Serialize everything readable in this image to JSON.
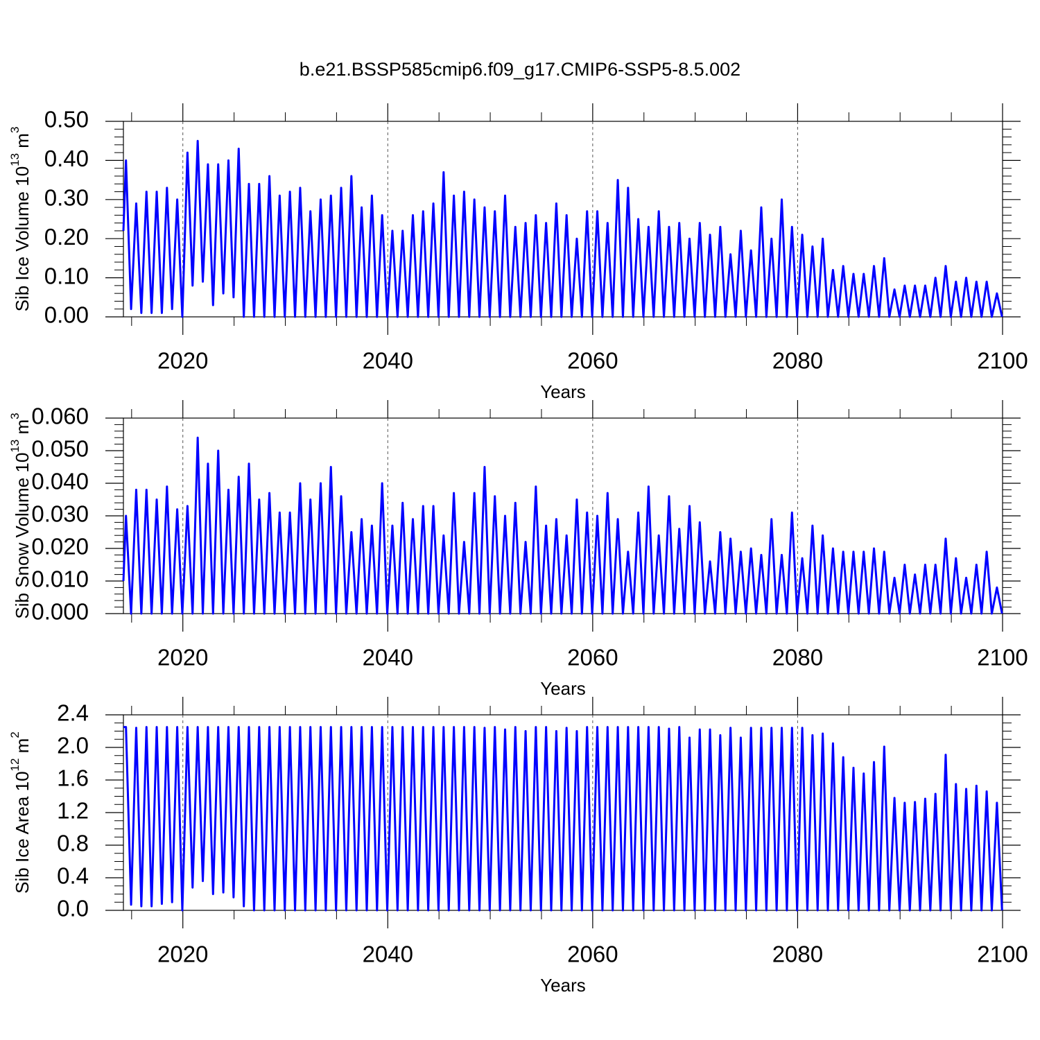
{
  "chart_data": [
    {
      "type": "line",
      "title": "b.e21.BSSP585cmip6.f09_g17.CMIP6-SSP5-8.5.002",
      "ylabel": [
        "Sib Ice Volume 10",
        "13",
        " m",
        "3"
      ],
      "xlabel": "Years",
      "color": "#0000ff",
      "grid": true,
      "xlim": [
        2014.2,
        2100
      ],
      "xticks": [
        2020,
        2040,
        2060,
        2080,
        2100
      ],
      "xminorticks": [
        2015,
        2025,
        2030,
        2035,
        2045,
        2050,
        2055,
        2065,
        2070,
        2075,
        2085,
        2090,
        2095
      ],
      "ylim": [
        0,
        0.5
      ],
      "yticks": [
        {
          "value": 0,
          "label": "0.00"
        },
        {
          "value": 0.1,
          "label": "0.10"
        },
        {
          "value": 0.2,
          "label": "0.20"
        },
        {
          "value": 0.3,
          "label": "0.30"
        },
        {
          "value": 0.4,
          "label": "0.40"
        },
        {
          "value": 0.5,
          "label": "0.50"
        }
      ],
      "yminorticks": [
        0.02,
        0.04,
        0.06,
        0.08,
        0.12,
        0.14,
        0.16,
        0.18,
        0.22,
        0.24,
        0.26,
        0.28,
        0.32,
        0.34,
        0.36,
        0.38,
        0.42,
        0.44,
        0.46,
        0.48
      ],
      "x": [
        2014.2,
        2014.45,
        2014.95,
        2015.45,
        2015.95,
        2016.45,
        2016.95,
        2017.45,
        2017.95,
        2018.45,
        2018.95,
        2019.45,
        2019.95,
        2020.45,
        2020.95,
        2021.45,
        2021.95,
        2022.45,
        2022.95,
        2023.45,
        2023.95,
        2024.45,
        2024.95,
        2025.45,
        2025.95,
        2026.45,
        2026.95,
        2027.45,
        2027.95,
        2028.45,
        2028.95,
        2029.45,
        2029.95,
        2030.45,
        2030.95,
        2031.45,
        2031.95,
        2032.45,
        2032.95,
        2033.45,
        2033.95,
        2034.45,
        2034.95,
        2035.45,
        2035.95,
        2036.45,
        2036.95,
        2037.45,
        2037.95,
        2038.45,
        2038.95,
        2039.45,
        2039.95,
        2040.45,
        2040.95,
        2041.45,
        2041.95,
        2042.45,
        2042.95,
        2043.45,
        2043.95,
        2044.45,
        2044.95,
        2045.45,
        2045.95,
        2046.45,
        2046.95,
        2047.45,
        2047.95,
        2048.45,
        2048.95,
        2049.45,
        2049.95,
        2050.45,
        2050.95,
        2051.45,
        2051.95,
        2052.45,
        2052.95,
        2053.45,
        2053.95,
        2054.45,
        2054.95,
        2055.45,
        2055.95,
        2056.45,
        2056.95,
        2057.45,
        2057.95,
        2058.45,
        2058.95,
        2059.45,
        2059.95,
        2060.45,
        2060.95,
        2061.45,
        2061.95,
        2062.45,
        2062.95,
        2063.45,
        2063.95,
        2064.45,
        2064.95,
        2065.45,
        2065.95,
        2066.45,
        2066.95,
        2067.45,
        2067.95,
        2068.45,
        2068.95,
        2069.45,
        2069.95,
        2070.45,
        2070.95,
        2071.45,
        2071.95,
        2072.45,
        2072.95,
        2073.45,
        2073.95,
        2074.45,
        2074.95,
        2075.45,
        2075.95,
        2076.45,
        2076.95,
        2077.45,
        2077.95,
        2078.45,
        2078.95,
        2079.45,
        2079.95,
        2080.45,
        2080.95,
        2081.45,
        2081.95,
        2082.45,
        2082.95,
        2083.45,
        2083.95,
        2084.45,
        2084.95,
        2085.45,
        2085.95,
        2086.45,
        2086.95,
        2087.45,
        2087.95,
        2088.45,
        2088.95,
        2089.45,
        2089.95,
        2090.45,
        2090.95,
        2091.45,
        2091.95,
        2092.45,
        2092.95,
        2093.45,
        2093.95,
        2094.45,
        2094.95,
        2095.45,
        2095.95,
        2096.45,
        2096.95,
        2097.45,
        2097.95,
        2098.45,
        2098.95,
        2099.45,
        2099.95
      ],
      "values": [
        0.22,
        0.4,
        0.02,
        0.29,
        0.01,
        0.32,
        0.01,
        0.32,
        0.01,
        0.33,
        0.02,
        0.3,
        0,
        0.42,
        0.08,
        0.45,
        0.09,
        0.39,
        0.03,
        0.39,
        0.06,
        0.4,
        0.05,
        0.43,
        0,
        0.34,
        0,
        0.34,
        0,
        0.36,
        0,
        0.31,
        0,
        0.32,
        0,
        0.33,
        0,
        0.27,
        0,
        0.3,
        0,
        0.31,
        0,
        0.33,
        0,
        0.36,
        0,
        0.28,
        0,
        0.31,
        0,
        0.26,
        0,
        0.22,
        0,
        0.22,
        0,
        0.26,
        0,
        0.27,
        0,
        0.29,
        0,
        0.37,
        0,
        0.31,
        0,
        0.32,
        0,
        0.3,
        0,
        0.28,
        0,
        0.27,
        0,
        0.31,
        0,
        0.23,
        0,
        0.24,
        0,
        0.26,
        0,
        0.24,
        0,
        0.29,
        0,
        0.26,
        0,
        0.2,
        0,
        0.27,
        0,
        0.27,
        0,
        0.24,
        0,
        0.35,
        0,
        0.33,
        0,
        0.25,
        0,
        0.23,
        0,
        0.27,
        0,
        0.23,
        0,
        0.24,
        0,
        0.2,
        0,
        0.24,
        0,
        0.21,
        0,
        0.23,
        0,
        0.16,
        0,
        0.22,
        0,
        0.17,
        0,
        0.28,
        0,
        0.2,
        0,
        0.3,
        0,
        0.23,
        0,
        0.21,
        0,
        0.18,
        0,
        0.2,
        0,
        0.12,
        0,
        0.13,
        0,
        0.11,
        0,
        0.11,
        0,
        0.13,
        0,
        0.15,
        0,
        0.07,
        0,
        0.08,
        0,
        0.08,
        0,
        0.08,
        0,
        0.1,
        0,
        0.13,
        0,
        0.09,
        0,
        0.1,
        0,
        0.09,
        0,
        0.09,
        0,
        0.06,
        0
      ]
    },
    {
      "type": "line",
      "ylabel": [
        "Sib Snow Volume 10",
        "13",
        " m",
        "3"
      ],
      "xlabel": "Years",
      "color": "#0000ff",
      "grid": true,
      "xlim": [
        2014.2,
        2100
      ],
      "xticks": [
        2020,
        2040,
        2060,
        2080,
        2100
      ],
      "xminorticks": [
        2015,
        2025,
        2030,
        2035,
        2045,
        2050,
        2055,
        2065,
        2070,
        2075,
        2085,
        2090,
        2095
      ],
      "ylim": [
        0,
        0.06
      ],
      "yticks": [
        {
          "value": 0,
          "label": "0.000"
        },
        {
          "value": 0.01,
          "label": "0.010"
        },
        {
          "value": 0.02,
          "label": "0.020"
        },
        {
          "value": 0.03,
          "label": "0.030"
        },
        {
          "value": 0.04,
          "label": "0.040"
        },
        {
          "value": 0.05,
          "label": "0.050"
        },
        {
          "value": 0.06,
          "label": "0.060"
        }
      ],
      "yminorticks": [
        0.002,
        0.004,
        0.006,
        0.008,
        0.012,
        0.014,
        0.016,
        0.018,
        0.022,
        0.024,
        0.026,
        0.028,
        0.032,
        0.034,
        0.036,
        0.038,
        0.042,
        0.044,
        0.046,
        0.048,
        0.052,
        0.054,
        0.056,
        0.058
      ],
      "x": [
        2014.2,
        2014.45,
        2014.95,
        2015.45,
        2015.95,
        2016.45,
        2016.95,
        2017.45,
        2017.95,
        2018.45,
        2018.95,
        2019.45,
        2019.95,
        2020.45,
        2020.95,
        2021.45,
        2021.95,
        2022.45,
        2022.95,
        2023.45,
        2023.95,
        2024.45,
        2024.95,
        2025.45,
        2025.95,
        2026.45,
        2026.95,
        2027.45,
        2027.95,
        2028.45,
        2028.95,
        2029.45,
        2029.95,
        2030.45,
        2030.95,
        2031.45,
        2031.95,
        2032.45,
        2032.95,
        2033.45,
        2033.95,
        2034.45,
        2034.95,
        2035.45,
        2035.95,
        2036.45,
        2036.95,
        2037.45,
        2037.95,
        2038.45,
        2038.95,
        2039.45,
        2039.95,
        2040.45,
        2040.95,
        2041.45,
        2041.95,
        2042.45,
        2042.95,
        2043.45,
        2043.95,
        2044.45,
        2044.95,
        2045.45,
        2045.95,
        2046.45,
        2046.95,
        2047.45,
        2047.95,
        2048.45,
        2048.95,
        2049.45,
        2049.95,
        2050.45,
        2050.95,
        2051.45,
        2051.95,
        2052.45,
        2052.95,
        2053.45,
        2053.95,
        2054.45,
        2054.95,
        2055.45,
        2055.95,
        2056.45,
        2056.95,
        2057.45,
        2057.95,
        2058.45,
        2058.95,
        2059.45,
        2059.95,
        2060.45,
        2060.95,
        2061.45,
        2061.95,
        2062.45,
        2062.95,
        2063.45,
        2063.95,
        2064.45,
        2064.95,
        2065.45,
        2065.95,
        2066.45,
        2066.95,
        2067.45,
        2067.95,
        2068.45,
        2068.95,
        2069.45,
        2069.95,
        2070.45,
        2070.95,
        2071.45,
        2071.95,
        2072.45,
        2072.95,
        2073.45,
        2073.95,
        2074.45,
        2074.95,
        2075.45,
        2075.95,
        2076.45,
        2076.95,
        2077.45,
        2077.95,
        2078.45,
        2078.95,
        2079.45,
        2079.95,
        2080.45,
        2080.95,
        2081.45,
        2081.95,
        2082.45,
        2082.95,
        2083.45,
        2083.95,
        2084.45,
        2084.95,
        2085.45,
        2085.95,
        2086.45,
        2086.95,
        2087.45,
        2087.95,
        2088.45,
        2088.95,
        2089.45,
        2089.95,
        2090.45,
        2090.95,
        2091.45,
        2091.95,
        2092.45,
        2092.95,
        2093.45,
        2093.95,
        2094.45,
        2094.95,
        2095.45,
        2095.95,
        2096.45,
        2096.95,
        2097.45,
        2097.95,
        2098.45,
        2098.95,
        2099.45,
        2099.95
      ],
      "values": [
        0.01,
        0.03,
        0,
        0.038,
        0,
        0.038,
        0,
        0.035,
        0,
        0.039,
        0,
        0.032,
        0,
        0.033,
        0,
        0.054,
        0,
        0.046,
        0,
        0.05,
        0,
        0.038,
        0,
        0.042,
        0,
        0.046,
        0,
        0.035,
        0,
        0.037,
        0,
        0.031,
        0,
        0.031,
        0,
        0.04,
        0,
        0.035,
        0,
        0.04,
        0,
        0.045,
        0,
        0.036,
        0,
        0.025,
        0,
        0.029,
        0,
        0.027,
        0,
        0.04,
        0,
        0.027,
        0,
        0.034,
        0,
        0.029,
        0,
        0.033,
        0,
        0.033,
        0,
        0.024,
        0,
        0.037,
        0,
        0.022,
        0,
        0.037,
        0,
        0.045,
        0,
        0.036,
        0,
        0.03,
        0,
        0.034,
        0,
        0.022,
        0,
        0.039,
        0,
        0.027,
        0,
        0.029,
        0,
        0.024,
        0,
        0.035,
        0,
        0.031,
        0,
        0.03,
        0,
        0.037,
        0,
        0.029,
        0,
        0.019,
        0,
        0.031,
        0,
        0.039,
        0,
        0.024,
        0,
        0.036,
        0,
        0.026,
        0,
        0.033,
        0,
        0.028,
        0,
        0.016,
        0,
        0.025,
        0,
        0.023,
        0,
        0.019,
        0,
        0.02,
        0,
        0.018,
        0,
        0.029,
        0,
        0.018,
        0,
        0.031,
        0,
        0.017,
        0,
        0.027,
        0,
        0.024,
        0,
        0.02,
        0,
        0.019,
        0,
        0.019,
        0,
        0.019,
        0,
        0.02,
        0,
        0.019,
        0,
        0.011,
        0,
        0.015,
        0,
        0.012,
        0,
        0.015,
        0,
        0.015,
        0,
        0.023,
        0,
        0.017,
        0,
        0.011,
        0,
        0.015,
        0,
        0.019,
        0,
        0.008,
        0
      ]
    },
    {
      "type": "line",
      "ylabel": [
        "Sib Ice Area 10",
        "12",
        " m",
        "2"
      ],
      "xlabel": "Years",
      "color": "#0000ff",
      "grid": true,
      "xlim": [
        2014.2,
        2100
      ],
      "xticks": [
        2020,
        2040,
        2060,
        2080,
        2100
      ],
      "xminorticks": [
        2015,
        2025,
        2030,
        2035,
        2045,
        2050,
        2055,
        2065,
        2070,
        2075,
        2085,
        2090,
        2095
      ],
      "ylim": [
        0,
        2.4
      ],
      "yticks": [
        {
          "value": 0,
          "label": "0.0"
        },
        0.4,
        0.8,
        1.2,
        1.6,
        {
          "value": 2,
          "label": "2.0"
        },
        2.4
      ],
      "yminorticks": [
        0.1,
        0.2,
        0.3,
        0.5,
        0.6,
        0.7,
        0.9,
        1.0,
        1.1,
        1.3,
        1.4,
        1.5,
        1.7,
        1.8,
        1.9,
        2.1,
        2.2,
        2.3
      ],
      "x": [
        2014.2,
        2014.45,
        2014.95,
        2015.45,
        2015.95,
        2016.45,
        2016.95,
        2017.45,
        2017.95,
        2018.45,
        2018.95,
        2019.45,
        2019.95,
        2020.45,
        2020.95,
        2021.45,
        2021.95,
        2022.45,
        2022.95,
        2023.45,
        2023.95,
        2024.45,
        2024.95,
        2025.45,
        2025.95,
        2026.45,
        2026.95,
        2027.45,
        2027.95,
        2028.45,
        2028.95,
        2029.45,
        2029.95,
        2030.45,
        2030.95,
        2031.45,
        2031.95,
        2032.45,
        2032.95,
        2033.45,
        2033.95,
        2034.45,
        2034.95,
        2035.45,
        2035.95,
        2036.45,
        2036.95,
        2037.45,
        2037.95,
        2038.45,
        2038.95,
        2039.45,
        2039.95,
        2040.45,
        2040.95,
        2041.45,
        2041.95,
        2042.45,
        2042.95,
        2043.45,
        2043.95,
        2044.45,
        2044.95,
        2045.45,
        2045.95,
        2046.45,
        2046.95,
        2047.45,
        2047.95,
        2048.45,
        2048.95,
        2049.45,
        2049.95,
        2050.45,
        2050.95,
        2051.45,
        2051.95,
        2052.45,
        2052.95,
        2053.45,
        2053.95,
        2054.45,
        2054.95,
        2055.45,
        2055.95,
        2056.45,
        2056.95,
        2057.45,
        2057.95,
        2058.45,
        2058.95,
        2059.45,
        2059.95,
        2060.45,
        2060.95,
        2061.45,
        2061.95,
        2062.45,
        2062.95,
        2063.45,
        2063.95,
        2064.45,
        2064.95,
        2065.45,
        2065.95,
        2066.45,
        2066.95,
        2067.45,
        2067.95,
        2068.45,
        2068.95,
        2069.45,
        2069.95,
        2070.45,
        2070.95,
        2071.45,
        2071.95,
        2072.45,
        2072.95,
        2073.45,
        2073.95,
        2074.45,
        2074.95,
        2075.45,
        2075.95,
        2076.45,
        2076.95,
        2077.45,
        2077.95,
        2078.45,
        2078.95,
        2079.45,
        2079.95,
        2080.45,
        2080.95,
        2081.45,
        2081.95,
        2082.45,
        2082.95,
        2083.45,
        2083.95,
        2084.45,
        2084.95,
        2085.45,
        2085.95,
        2086.45,
        2086.95,
        2087.45,
        2087.95,
        2088.45,
        2088.95,
        2089.45,
        2089.95,
        2090.45,
        2090.95,
        2091.45,
        2091.95,
        2092.45,
        2092.95,
        2093.45,
        2093.95,
        2094.45,
        2094.95,
        2095.45,
        2095.95,
        2096.45,
        2096.95,
        2097.45,
        2097.95,
        2098.45,
        2098.95,
        2099.45,
        2099.95
      ],
      "values": [
        2.25,
        2.25,
        0.07,
        2.24,
        0.05,
        2.25,
        0.05,
        2.25,
        0.08,
        2.25,
        0.1,
        2.25,
        0,
        2.25,
        0.28,
        2.25,
        0.36,
        2.25,
        0.2,
        2.25,
        0.22,
        2.25,
        0.16,
        2.25,
        0.05,
        2.25,
        0,
        2.25,
        0,
        2.25,
        0,
        2.25,
        0,
        2.25,
        0,
        2.25,
        0,
        2.25,
        0,
        2.25,
        0,
        2.25,
        0,
        2.25,
        0,
        2.25,
        0,
        2.25,
        0,
        2.25,
        0,
        2.25,
        0,
        2.25,
        0,
        2.25,
        0,
        2.25,
        0,
        2.25,
        0,
        2.25,
        0,
        2.25,
        0,
        2.25,
        0,
        2.25,
        0,
        2.25,
        0,
        2.24,
        0,
        2.25,
        0,
        2.22,
        0,
        2.25,
        0,
        2.2,
        0,
        2.25,
        0,
        2.25,
        0,
        2.2,
        0,
        2.24,
        0,
        2.2,
        0,
        2.25,
        0,
        2.25,
        0,
        2.25,
        0,
        2.25,
        0,
        2.25,
        0,
        2.25,
        0,
        2.25,
        0,
        2.25,
        0,
        2.23,
        0,
        2.25,
        0,
        2.12,
        0,
        2.22,
        0,
        2.22,
        0,
        2.15,
        0,
        2.24,
        0,
        2.12,
        0,
        2.24,
        0,
        2.24,
        0,
        2.24,
        0,
        2.24,
        0,
        2.24,
        0,
        2.24,
        0,
        2.15,
        0,
        2.17,
        0,
        2.05,
        0,
        1.88,
        0,
        1.75,
        0,
        1.68,
        0,
        1.82,
        0,
        2.01,
        0,
        1.38,
        0,
        1.32,
        0,
        1.33,
        0,
        1.37,
        0,
        1.43,
        0,
        1.91,
        0,
        1.55,
        0,
        1.49,
        0,
        1.53,
        0,
        1.46,
        0,
        1.32,
        0
      ]
    }
  ]
}
